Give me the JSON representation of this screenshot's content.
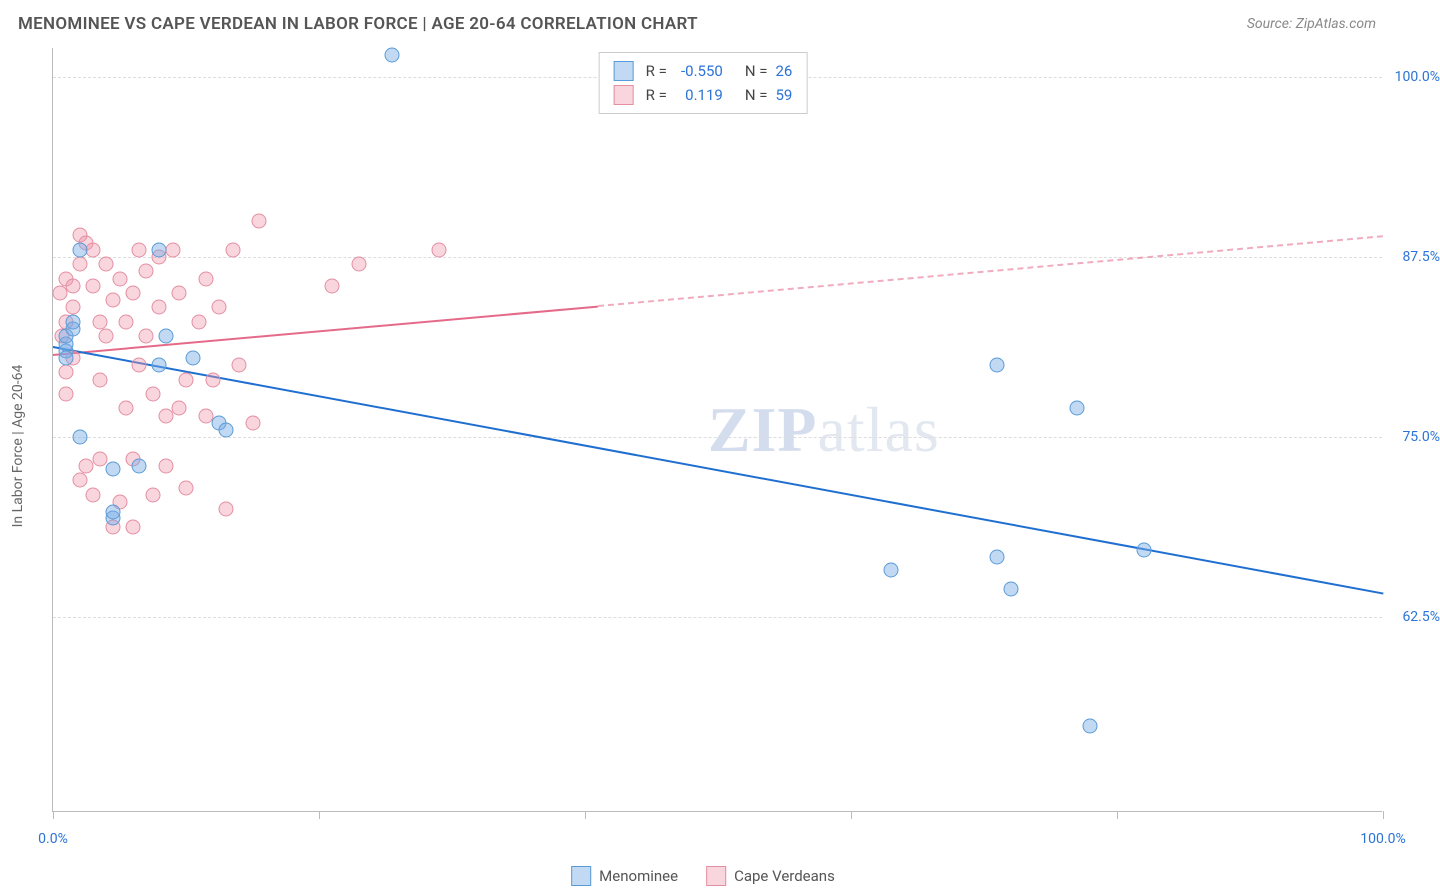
{
  "title": "MENOMINEE VS CAPE VERDEAN IN LABOR FORCE | AGE 20-64 CORRELATION CHART",
  "source": "Source: ZipAtlas.com",
  "ylabel": "In Labor Force | Age 20-64",
  "watermark_zip": "ZIP",
  "watermark_atlas": "atlas",
  "colors": {
    "series_a_fill": "rgba(120,170,230,0.45)",
    "series_a_stroke": "#5b9bd5",
    "series_b_fill": "rgba(240,150,170,0.40)",
    "series_b_stroke": "#e38fa2",
    "trend_a": "#1f6fd1",
    "trend_b": "#e56a8a",
    "axis_text": "#2b73d6",
    "grid": "#dddddd"
  },
  "chart": {
    "type": "scatter",
    "xlim": [
      0,
      100
    ],
    "ylim": [
      49,
      102
    ],
    "point_radius": 7.5,
    "y_ticks": [
      62.5,
      75.0,
      87.5,
      100.0
    ],
    "y_tick_labels": [
      "62.5%",
      "75.0%",
      "87.5%",
      "100.0%"
    ],
    "x_ticks": [
      0,
      20,
      40,
      60,
      80,
      100
    ],
    "x_tick_labels": {
      "0": "0.0%",
      "100": "100.0%"
    }
  },
  "legend_top": {
    "rows": [
      {
        "swatch_fill": "rgba(120,170,230,0.45)",
        "swatch_stroke": "#5b9bd5",
        "r_label": "R =",
        "r": "-0.550",
        "n_label": "N =",
        "n": "26"
      },
      {
        "swatch_fill": "rgba(240,150,170,0.40)",
        "swatch_stroke": "#e38fa2",
        "r_label": "R =",
        "r": "0.119",
        "n_label": "N =",
        "n": "59"
      }
    ]
  },
  "legend_bottom": {
    "items": [
      {
        "swatch_fill": "rgba(120,170,230,0.45)",
        "swatch_stroke": "#5b9bd5",
        "label": "Menominee"
      },
      {
        "swatch_fill": "rgba(240,150,170,0.40)",
        "swatch_stroke": "#e38fa2",
        "label": "Cape Verdeans"
      }
    ]
  },
  "series_a": {
    "name": "Menominee",
    "points": [
      [
        1,
        81
      ],
      [
        1,
        81.5
      ],
      [
        1,
        82
      ],
      [
        1.5,
        82.5
      ],
      [
        1,
        80.5
      ],
      [
        1.5,
        83
      ],
      [
        2,
        88
      ],
      [
        8,
        88
      ],
      [
        2,
        75
      ],
      [
        4.5,
        72.8
      ],
      [
        4.5,
        69.4
      ],
      [
        4.5,
        69.8
      ],
      [
        6.5,
        73
      ],
      [
        8,
        80
      ],
      [
        8.5,
        82
      ],
      [
        10.5,
        80.5
      ],
      [
        12.5,
        76
      ],
      [
        13,
        75.5
      ],
      [
        25.5,
        101.5
      ],
      [
        63,
        65.8
      ],
      [
        71,
        66.7
      ],
      [
        71,
        80
      ],
      [
        72,
        64.5
      ],
      [
        77,
        77
      ],
      [
        82,
        67.2
      ],
      [
        78,
        55
      ]
    ],
    "trend": {
      "x1": 0,
      "y1": 81.3,
      "x2": 100,
      "y2": 64.2,
      "dash_from_x": 100
    }
  },
  "series_b": {
    "name": "Cape Verdeans",
    "points": [
      [
        0.5,
        85
      ],
      [
        1,
        86
      ],
      [
        1,
        83
      ],
      [
        1.5,
        84
      ],
      [
        1,
        79.5
      ],
      [
        1.5,
        80.5
      ],
      [
        1,
        78
      ],
      [
        1.5,
        85.5
      ],
      [
        2,
        87
      ],
      [
        2,
        89
      ],
      [
        2.5,
        88.5
      ],
      [
        0.7,
        82
      ],
      [
        2,
        72
      ],
      [
        2.5,
        73
      ],
      [
        3,
        88
      ],
      [
        3,
        85.5
      ],
      [
        3.5,
        83
      ],
      [
        3.5,
        79
      ],
      [
        3.5,
        73.5
      ],
      [
        3,
        71
      ],
      [
        4,
        87
      ],
      [
        4,
        82
      ],
      [
        4.5,
        84.5
      ],
      [
        4.5,
        68.8
      ],
      [
        5,
        70.5
      ],
      [
        5,
        86
      ],
      [
        5.5,
        83
      ],
      [
        5.5,
        77
      ],
      [
        6,
        85
      ],
      [
        6,
        73.5
      ],
      [
        6,
        68.8
      ],
      [
        6.5,
        88
      ],
      [
        6.5,
        80
      ],
      [
        7,
        86.5
      ],
      [
        7,
        82
      ],
      [
        7.5,
        78
      ],
      [
        7.5,
        71
      ],
      [
        8,
        87.5
      ],
      [
        8,
        84
      ],
      [
        8.5,
        76.5
      ],
      [
        8.5,
        73
      ],
      [
        9,
        88
      ],
      [
        9.5,
        85
      ],
      [
        9.5,
        77
      ],
      [
        10,
        79
      ],
      [
        10,
        71.5
      ],
      [
        11,
        83
      ],
      [
        11.5,
        86
      ],
      [
        11.5,
        76.5
      ],
      [
        12,
        79
      ],
      [
        12.5,
        84
      ],
      [
        13,
        70
      ],
      [
        13.5,
        88
      ],
      [
        14,
        80
      ],
      [
        15,
        76
      ],
      [
        15.5,
        90
      ],
      [
        21,
        85.5
      ],
      [
        23,
        87
      ],
      [
        29,
        88
      ]
    ],
    "trend": {
      "x1": 0,
      "y1": 80.8,
      "x2": 100,
      "y2": 89.0,
      "dash_from_x": 41
    }
  }
}
